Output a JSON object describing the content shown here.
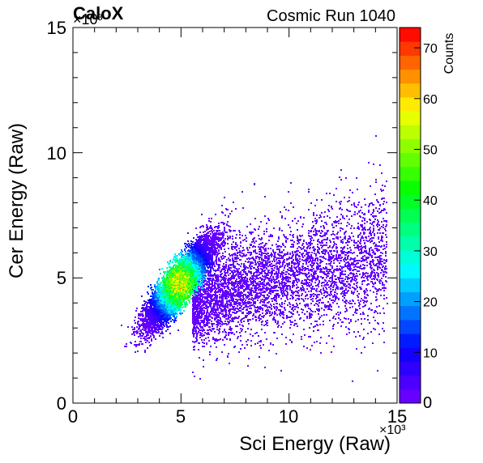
{
  "header": {
    "left_title": "CaloX",
    "right_title": "Cosmic Run 1040"
  },
  "chart_data": {
    "type": "heatmap",
    "xlabel": "Sci Energy (Raw)",
    "ylabel": "Cer Energy (Raw)",
    "xlim": [
      0,
      15
    ],
    "ylim": [
      0,
      15
    ],
    "x_ticks": [
      "0",
      "5",
      "10",
      "15"
    ],
    "y_ticks": [
      "0",
      "5",
      "10",
      "15"
    ],
    "x_multiplier": "×10³",
    "y_multiplier": "×10³",
    "colorbar": {
      "label": "Counts",
      "range": [
        0,
        74
      ],
      "ticks": [
        "0",
        "10",
        "20",
        "30",
        "40",
        "50",
        "60",
        "70"
      ],
      "palette": [
        "#6600ff",
        "#4b00ff",
        "#2f00ff",
        "#1400ff",
        "#001bff",
        "#0047ff",
        "#0074ff",
        "#00a0ff",
        "#00ccff",
        "#00f9ff",
        "#00ffd8",
        "#00ffac",
        "#00ff7f",
        "#00ff52",
        "#00ff25",
        "#08ff00",
        "#35ff00",
        "#62ff00",
        "#8fff00",
        "#bbff00",
        "#e8ff00",
        "#ffeb00",
        "#ffbe00",
        "#ff9100",
        "#ff6400",
        "#ff3800",
        "#ff0b00"
      ]
    },
    "regions": [
      {
        "name": "core cluster",
        "center": [
          4.9,
          4.8
        ],
        "spread": [
          0.75,
          0.85
        ],
        "orientation": "positive correlation",
        "peak_counts": 55
      },
      {
        "name": "tail",
        "x_range": [
          5.5,
          14.5
        ],
        "y_range": [
          3.5,
          8.0
        ],
        "peak_counts": 3
      }
    ]
  }
}
